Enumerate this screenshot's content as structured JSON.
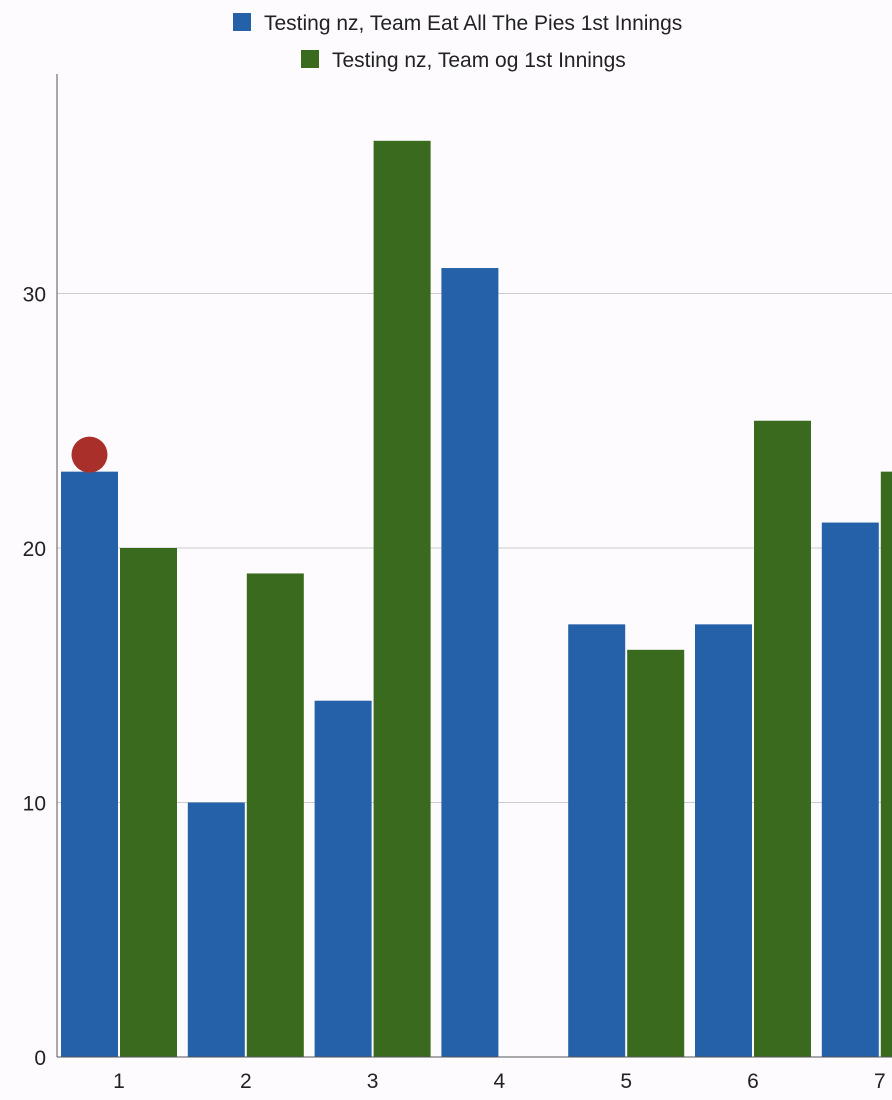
{
  "chart_data": {
    "type": "bar",
    "categories": [
      "1",
      "2",
      "3",
      "4",
      "5",
      "6",
      "7"
    ],
    "series": [
      {
        "name": "Testing nz, Team Eat All The Pies 1st Innings",
        "color": "#2461a8",
        "values": [
          23,
          10,
          14,
          31,
          17,
          17,
          21
        ]
      },
      {
        "name": "Testing nz, Team og 1st Innings",
        "color": "#396a1e",
        "values": [
          20,
          19,
          36,
          null,
          16,
          25,
          23
        ]
      }
    ],
    "y_ticks": [
      0,
      10,
      20,
      30
    ],
    "ylim": [
      0,
      38.6
    ],
    "grid": true,
    "legend_position": "top-center",
    "marker": {
      "series_index": 0,
      "category_index": 0,
      "color": "#a9302a"
    }
  }
}
